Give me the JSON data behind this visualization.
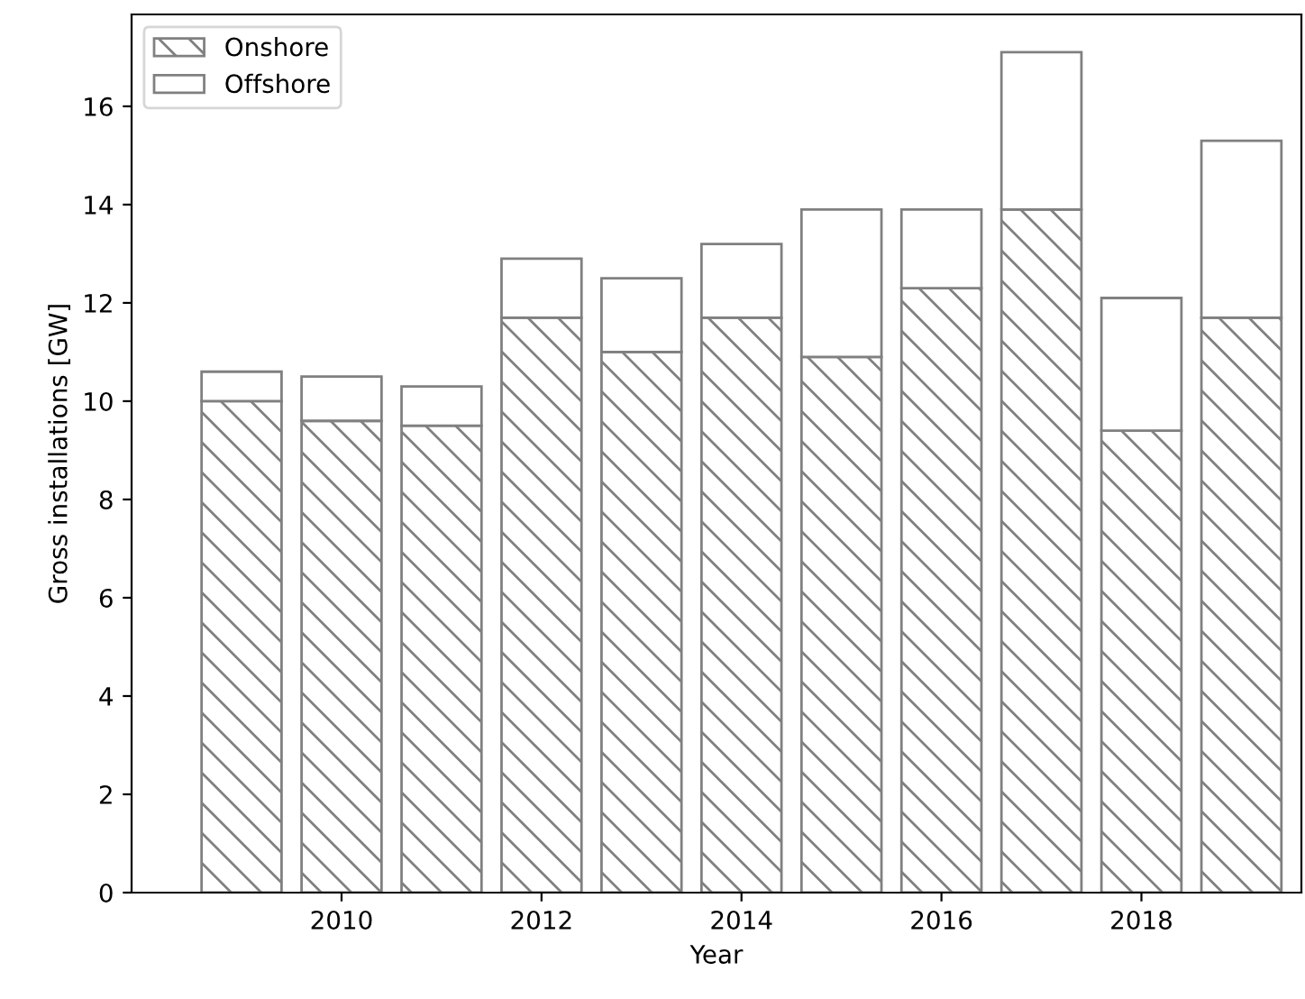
{
  "chart_data": {
    "type": "bar",
    "stacked": true,
    "xlabel": "Year",
    "ylabel": "Gross installations [GW]",
    "x": [
      2009,
      2010,
      2011,
      2012,
      2013,
      2014,
      2015,
      2016,
      2017,
      2018,
      2019
    ],
    "series": [
      {
        "name": "Onshore",
        "color": "#808080",
        "values": [
          10.0,
          9.6,
          9.5,
          11.7,
          11.0,
          11.7,
          10.9,
          12.3,
          13.9,
          9.4,
          11.7
        ]
      },
      {
        "name": "Offshore",
        "color": "#808080",
        "values": [
          0.6,
          0.9,
          0.8,
          1.2,
          1.5,
          1.5,
          3.0,
          1.6,
          3.2,
          2.7,
          3.6
        ]
      }
    ],
    "xlim": [
      2007.9,
      2019.6
    ],
    "xticks": [
      2010,
      2012,
      2014,
      2016,
      2018
    ],
    "ylim": [
      0,
      17.87
    ],
    "yticks": [
      0,
      2,
      4,
      6,
      8,
      10,
      12,
      14,
      16
    ],
    "legend": "top left",
    "grid": false
  }
}
